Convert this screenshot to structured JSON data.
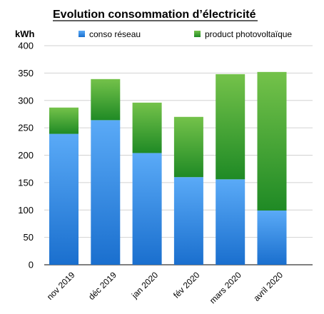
{
  "chart_data": {
    "type": "bar",
    "stacked": true,
    "title": "Evolution consommation d’électricité",
    "ylabel": "kWh",
    "xlabel": "",
    "categories": [
      "nov 2019",
      "déc 2019",
      "jan 2020",
      "fév 2020",
      "mars 2020",
      "avril 2020"
    ],
    "series": [
      {
        "name": "conso réseau",
        "color": "#2f86e0",
        "values": [
          239,
          264,
          204,
          160,
          156,
          99
        ]
      },
      {
        "name": "product photovoltaïque",
        "color": "#3aa63a",
        "values": [
          48,
          75,
          92,
          110,
          192,
          253
        ]
      }
    ],
    "ylim": [
      0,
      400
    ],
    "yticks": [
      0,
      50,
      100,
      150,
      200,
      250,
      300,
      350,
      400
    ],
    "grid": true,
    "legend_position": "top"
  }
}
